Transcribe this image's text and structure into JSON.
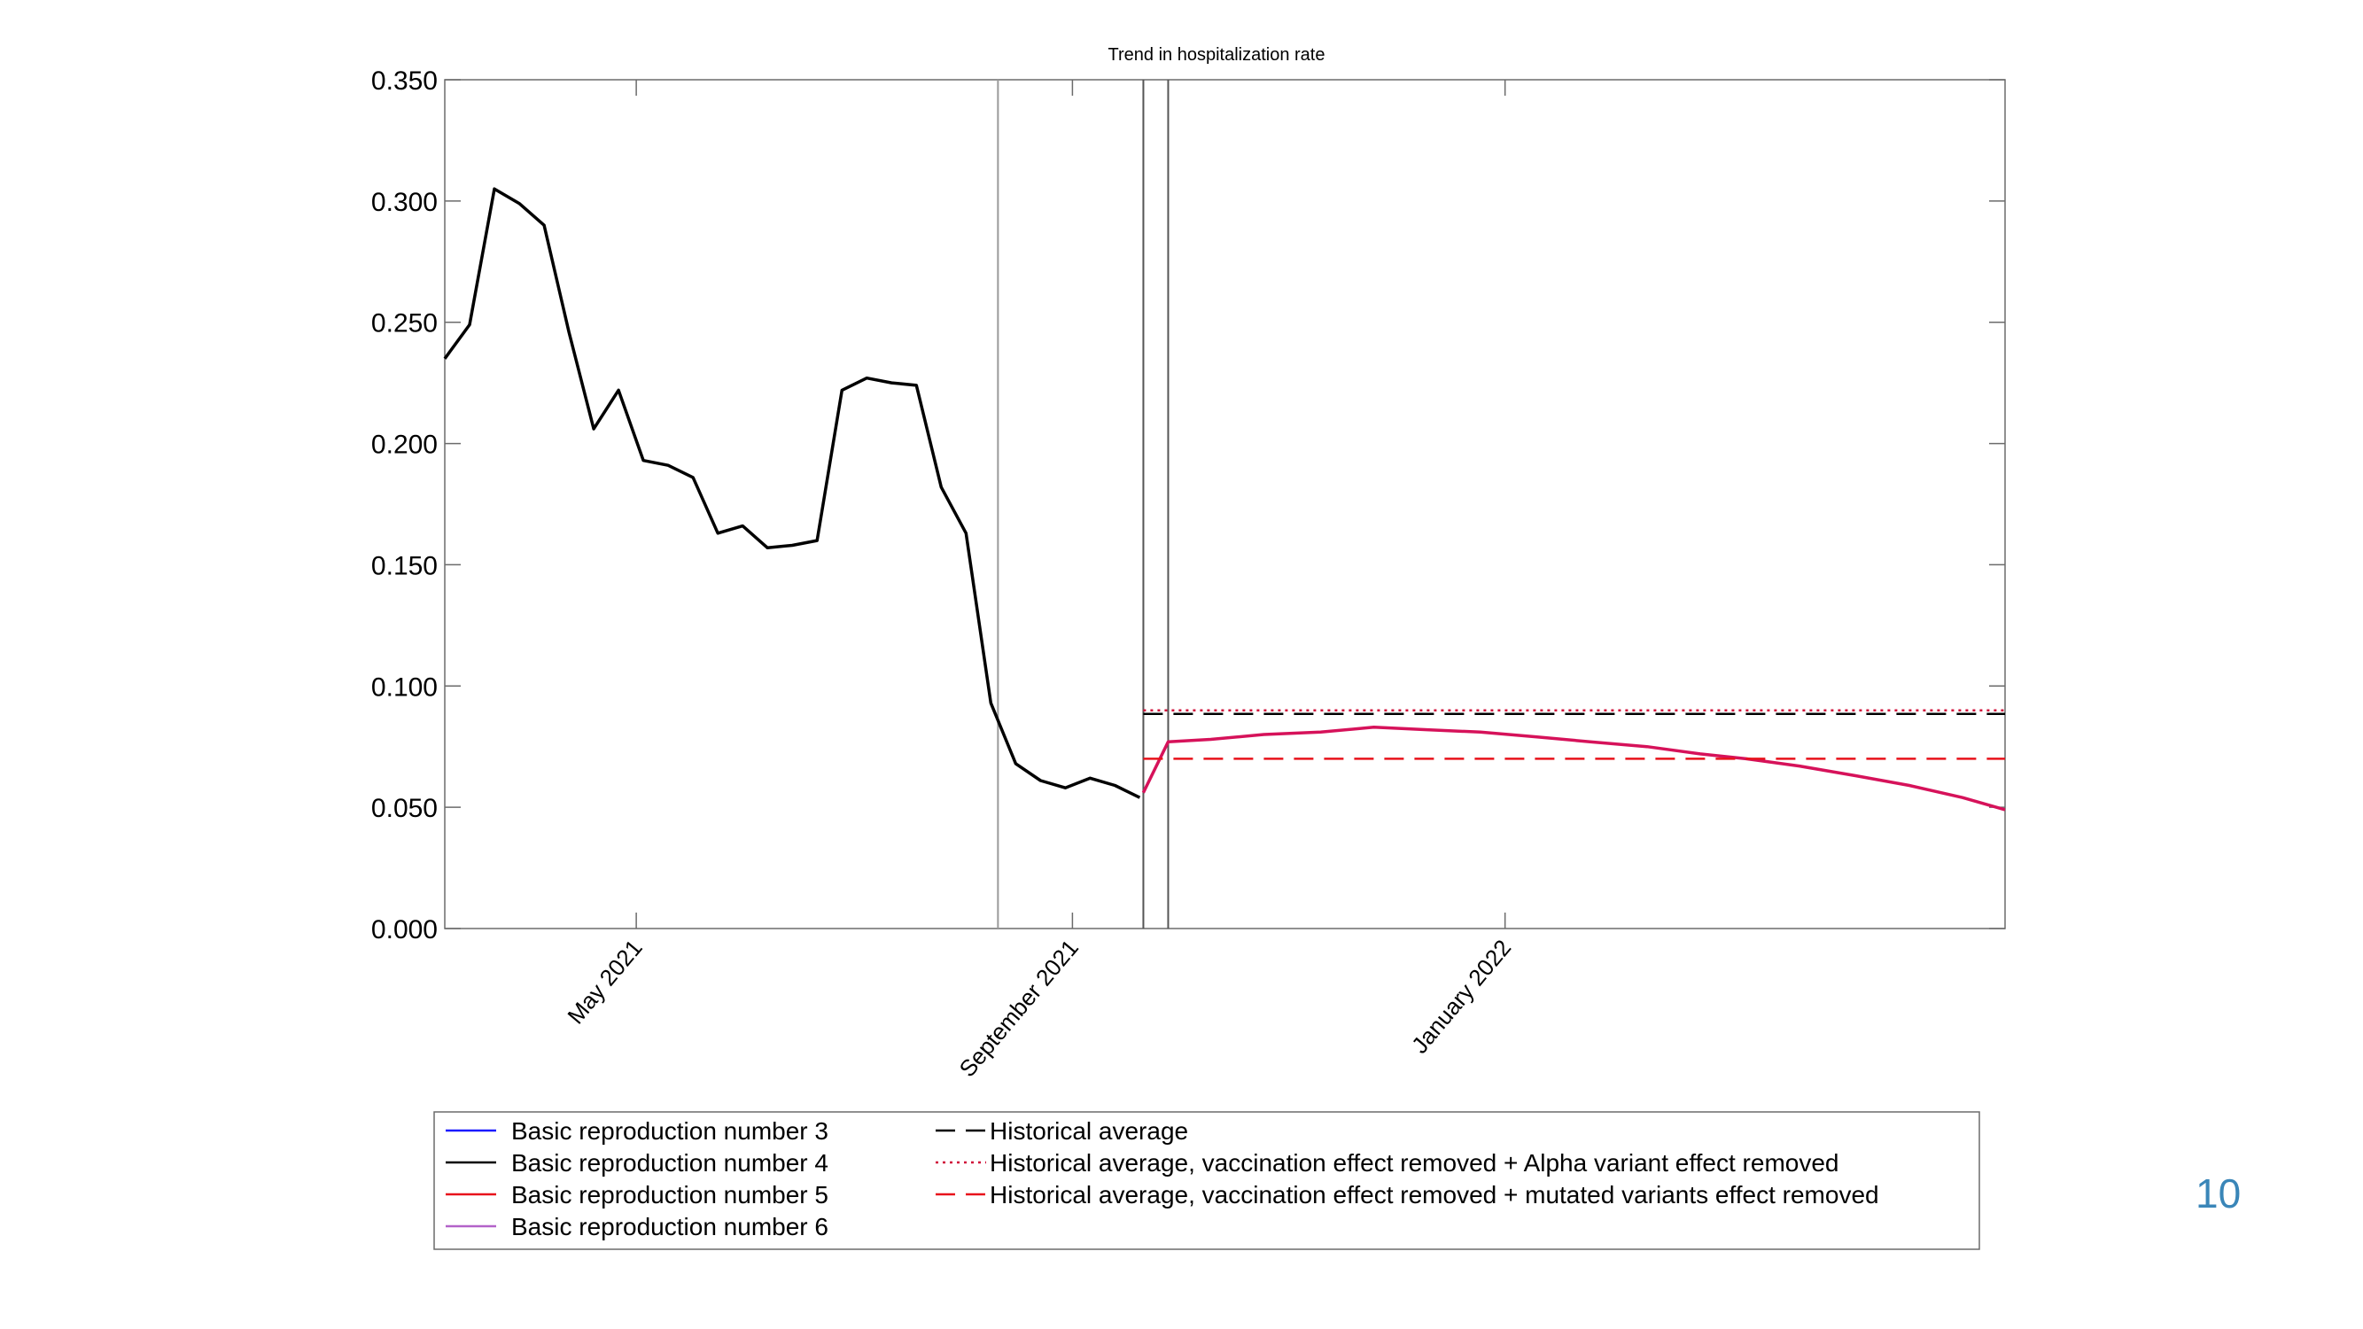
{
  "page": {
    "number": "10"
  },
  "chart_data": {
    "type": "line",
    "title": "Trend in hospitalization rate",
    "xlabel": "",
    "ylabel": "",
    "ylim": [
      0,
      0.35
    ],
    "xlim": [
      "2021-03-08",
      "2022-05-22"
    ],
    "y_ticks": [
      "0.000",
      "0.050",
      "0.100",
      "0.150",
      "0.200",
      "0.250",
      "0.300",
      "0.350"
    ],
    "x_ticks": [
      {
        "date": "2021-05-01",
        "label": "May 2021"
      },
      {
        "date": "2021-09-01",
        "label": "September 2021"
      },
      {
        "date": "2022-01-01",
        "label": "January 2022"
      }
    ],
    "vertical_lines": [
      {
        "date": "2021-08-11",
        "color": "#9a9a9a"
      },
      {
        "date": "2021-09-21",
        "color": "#555555"
      },
      {
        "date": "2021-09-28",
        "color": "#555555"
      }
    ],
    "grid": false,
    "legend_position": "bottom",
    "colors": {
      "blue": "#1a1aff",
      "black": "#000000",
      "red": "#e8121b",
      "violet": "#b362c9",
      "projection": "#d6125a",
      "dotted": "#d0103a"
    },
    "series": [
      {
        "name": "Basic reproduction number 3",
        "color": "#1a1aff",
        "style": "solid",
        "x": [],
        "y": []
      },
      {
        "name": "Basic reproduction number 4",
        "color": "#000000",
        "style": "solid",
        "x": [
          "2021-03-08",
          "2021-03-15",
          "2021-03-22",
          "2021-03-29",
          "2021-04-05",
          "2021-04-12",
          "2021-04-19",
          "2021-04-26",
          "2021-05-03",
          "2021-05-10",
          "2021-05-17",
          "2021-05-24",
          "2021-05-31",
          "2021-06-07",
          "2021-06-14",
          "2021-06-21",
          "2021-06-28",
          "2021-07-05",
          "2021-07-12",
          "2021-07-19",
          "2021-07-26",
          "2021-08-02",
          "2021-08-09",
          "2021-08-16",
          "2021-08-23",
          "2021-08-30",
          "2021-09-06",
          "2021-09-13",
          "2021-09-20"
        ],
        "y": [
          0.235,
          0.249,
          0.305,
          0.299,
          0.29,
          0.246,
          0.206,
          0.222,
          0.193,
          0.191,
          0.186,
          0.163,
          0.166,
          0.157,
          0.158,
          0.16,
          0.222,
          0.227,
          0.225,
          0.224,
          0.182,
          0.163,
          0.093,
          0.068,
          0.061,
          0.058,
          0.062,
          0.059,
          0.054
        ]
      },
      {
        "name": "Basic reproduction number 5",
        "color": "#e8121b",
        "style": "solid",
        "x": [],
        "y": []
      },
      {
        "name": "Basic reproduction number 6",
        "color": "#b362c9",
        "style": "solid",
        "x": [
          "2021-09-21",
          "2021-09-28",
          "2021-10-10",
          "2021-10-25",
          "2021-11-10",
          "2021-11-25",
          "2021-12-10",
          "2021-12-25",
          "2022-01-10",
          "2022-01-25",
          "2022-02-10",
          "2022-02-25",
          "2022-03-10",
          "2022-03-25",
          "2022-04-10",
          "2022-04-25",
          "2022-05-10",
          "2022-05-22"
        ],
        "y": [
          0.056,
          0.077,
          0.078,
          0.08,
          0.081,
          0.083,
          0.082,
          0.081,
          0.079,
          0.077,
          0.075,
          0.072,
          0.07,
          0.067,
          0.063,
          0.059,
          0.054,
          0.049
        ]
      },
      {
        "name": "Historical average",
        "color": "#000000",
        "style": "dashed",
        "x": [
          "2021-09-21",
          "2022-05-22"
        ],
        "y": [
          0.0885,
          0.0885
        ]
      },
      {
        "name": "Historical average, vaccination effect removed + Alpha variant effect removed",
        "color": "#d0103a",
        "style": "dotted",
        "x": [
          "2021-09-21",
          "2022-05-22"
        ],
        "y": [
          0.09,
          0.09
        ]
      },
      {
        "name": "Historical average, vaccination effect removed + mutated variants effect removed",
        "color": "#e8121b",
        "style": "dashed",
        "x": [
          "2021-09-21",
          "2022-05-22"
        ],
        "y": [
          0.07,
          0.07
        ]
      }
    ]
  },
  "legend": {
    "left": [
      {
        "label": "Basic reproduction number 3",
        "color": "#1a1aff",
        "style": "solid"
      },
      {
        "label": "Basic reproduction number 4",
        "color": "#000000",
        "style": "solid"
      },
      {
        "label": "Basic reproduction number 5",
        "color": "#e8121b",
        "style": "solid"
      },
      {
        "label": "Basic reproduction number 6",
        "color": "#b362c9",
        "style": "solid"
      }
    ],
    "right": [
      {
        "label": "Historical average",
        "color": "#000000",
        "style": "dashed"
      },
      {
        "label": "Historical average, vaccination effect removed + Alpha variant effect removed",
        "color": "#d0103a",
        "style": "dotted"
      },
      {
        "label": "Historical average, vaccination effect removed + mutated variants effect removed",
        "color": "#e8121b",
        "style": "dashed"
      }
    ]
  }
}
